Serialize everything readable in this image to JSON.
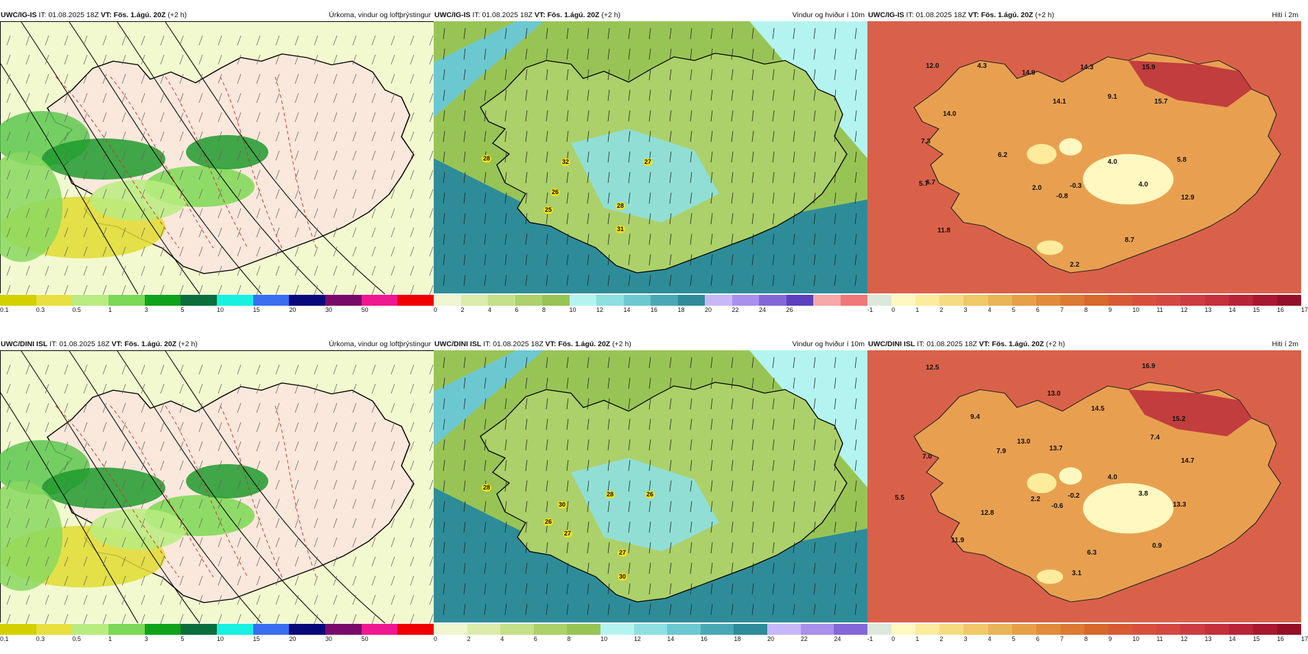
{
  "rows": [
    {
      "model": "UWC/IG-IS",
      "panels": [
        {
          "type": "precip",
          "model": "UWC/IG-IS",
          "it_label": "IT:",
          "it": "01.08.2025 18Z",
          "vt_label": "VT:",
          "vt": "Fös. 1.ágú. 20Z",
          "lead": "(+2 h)",
          "title": "Úrkoma, vindur og loftþrýstingur"
        },
        {
          "type": "wind",
          "model": "UWC/IG-IS",
          "it_label": "IT:",
          "it": "01.08.2025 18Z",
          "vt_label": "VT:",
          "vt": "Fös. 1.ágú. 20Z",
          "lead": "(+2 h)",
          "title": "Vindur og hviður í 10m",
          "gusts": [
            "28",
            "32",
            "27",
            "26",
            "25",
            "28",
            "31"
          ]
        },
        {
          "type": "temp",
          "model": "UWC/IG-IS",
          "it_label": "IT:",
          "it": "01.08.2025 18Z",
          "vt_label": "VT:",
          "vt": "Fös. 1.ágú. 20Z",
          "lead": "(+2 h)",
          "title": "Hiti í 2m",
          "values": [
            "12.0",
            "4.3",
            "14.9",
            "14.3",
            "15.9",
            "9.1",
            "14.0",
            "14.1",
            "15.7",
            "7.3",
            "6.2",
            "5.7",
            "6.7",
            "2.0",
            "-0.3",
            "4.0",
            "5.8",
            "4.0",
            "12.9",
            "-0.8",
            "11.8",
            "8.7",
            "2.2"
          ]
        }
      ]
    },
    {
      "model": "UWC/DINI ISL",
      "panels": [
        {
          "type": "precip",
          "model": "UWC/DINI ISL",
          "it_label": "IT:",
          "it": "01.08.2025 18Z",
          "vt_label": "VT:",
          "vt": "Fös. 1.ágú. 20Z",
          "lead": "(+2 h)",
          "title": "Úrkoma, vindur og loftþrýstingur"
        },
        {
          "type": "wind",
          "model": "UWC/DINI ISL",
          "it_label": "IT:",
          "it": "01.08.2025 18Z",
          "vt_label": "VT:",
          "vt": "Fös. 1.ágú. 20Z",
          "lead": "(+2 h)",
          "title": "Vindur og hviður í 10m",
          "gusts": [
            "28",
            "30",
            "28",
            "26",
            "26",
            "27",
            "27",
            "30"
          ]
        },
        {
          "type": "temp",
          "model": "UWC/DINI ISL",
          "it_label": "IT:",
          "it": "01.08.2025 18Z",
          "vt_label": "VT:",
          "vt": "Fös. 1.ágú. 20Z",
          "lead": "(+2 h)",
          "title": "Hiti í 2m",
          "values": [
            "12.5",
            "16.9",
            "13.0",
            "9.4",
            "14.5",
            "15.2",
            "13.0",
            "7.9",
            "13.7",
            "7.4",
            "14.7",
            "7.0",
            "5.5",
            "2.2",
            "-0.2",
            "4.0",
            "3.8",
            "13.3",
            "12.8",
            "-0.6",
            "11.9",
            "6.3",
            "0.9",
            "3.1"
          ]
        }
      ]
    }
  ],
  "precip_scale": {
    "ticks": [
      "0.1",
      "0.3",
      "0.5",
      "1",
      "3",
      "5",
      "10",
      "15",
      "20",
      "30",
      "50"
    ],
    "colors": [
      "#d4d000",
      "#e8e040",
      "#b8ec80",
      "#7bd854",
      "#0fa41c",
      "#0a6e3c",
      "#18f0e0",
      "#3a6ef0",
      "#08087a",
      "#7a0a6a",
      "#f01890",
      "#f00000"
    ]
  },
  "wind_scale": {
    "ticks_row1": [
      "0",
      "2",
      "4",
      "6",
      "8",
      "10",
      "12",
      "14",
      "16",
      "18",
      "20",
      "22",
      "24",
      "26"
    ],
    "ticks_row2": [
      "0",
      "2",
      "4",
      "6",
      "8",
      "10",
      "12",
      "14",
      "16",
      "18",
      "20",
      "22",
      "24"
    ],
    "colors": [
      "#f0f6d0",
      "#dcecaa",
      "#c4e088",
      "#acd06a",
      "#98c456",
      "#b4f4f0",
      "#8ee0e0",
      "#6cc8d0",
      "#4aa8b4",
      "#2e8c98",
      "#c8b8f8",
      "#a890ec",
      "#8468d8",
      "#5c40c0",
      "#f8a8a8",
      "#f07878"
    ]
  },
  "temp_scale": {
    "ticks": [
      "-1",
      "0",
      "1",
      "2",
      "3",
      "4",
      "5",
      "6",
      "7",
      "8",
      "9",
      "10",
      "11",
      "12",
      "13",
      "14",
      "15",
      "16",
      "17"
    ],
    "colors": [
      "#dce8dc",
      "#fff8c0",
      "#fcec9c",
      "#f6dc80",
      "#f0c868",
      "#eab458",
      "#e6a048",
      "#e08c3c",
      "#dc7a34",
      "#d8682c",
      "#d85a34",
      "#d8503c",
      "#d44842",
      "#cc3c40",
      "#c4303c",
      "#b82438",
      "#a81830",
      "#941028"
    ]
  }
}
